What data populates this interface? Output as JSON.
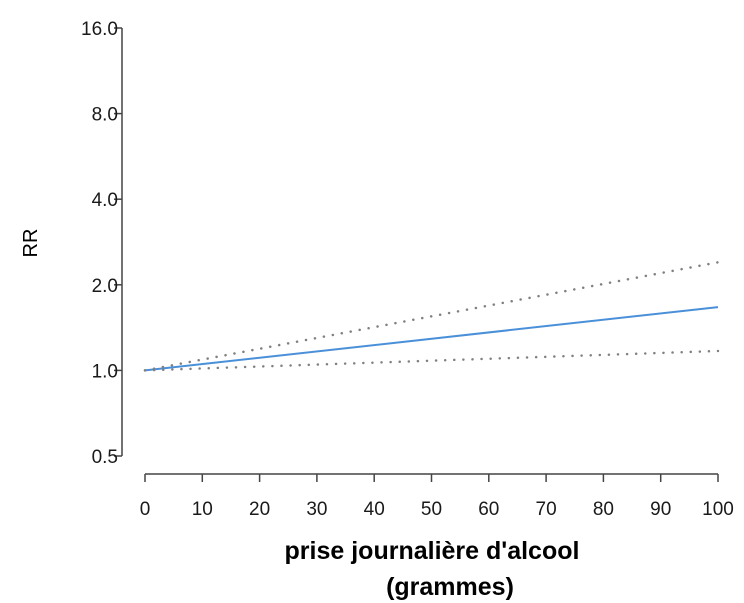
{
  "chart_data": {
    "type": "line",
    "title": "",
    "xlabel": [
      "prise journalière d'alcool",
      "(grammes)"
    ],
    "ylabel": "RR",
    "xlim": [
      0,
      100
    ],
    "ylim": [
      0.5,
      16.0
    ],
    "yscale": "log2",
    "x_ticks": [
      0,
      10,
      20,
      30,
      40,
      50,
      60,
      70,
      80,
      90,
      100
    ],
    "y_ticks": [
      0.5,
      1.0,
      2.0,
      4.0,
      8.0,
      16.0
    ],
    "y_tick_labels": [
      "0.5",
      "1.0",
      "2.0",
      "4.0",
      "8.0",
      "16.0"
    ],
    "grid": false,
    "legend": "none",
    "series": [
      {
        "style": "solid",
        "color": "#4a90d9",
        "x": [
          0,
          100
        ],
        "y": [
          1.0,
          1.67
        ]
      },
      {
        "style": "dotted",
        "color": "#808080",
        "x": [
          0,
          100
        ],
        "y": [
          1.0,
          2.4
        ]
      },
      {
        "style": "dotted",
        "color": "#808080",
        "x": [
          0,
          100
        ],
        "y": [
          1.0,
          1.17
        ]
      }
    ]
  }
}
